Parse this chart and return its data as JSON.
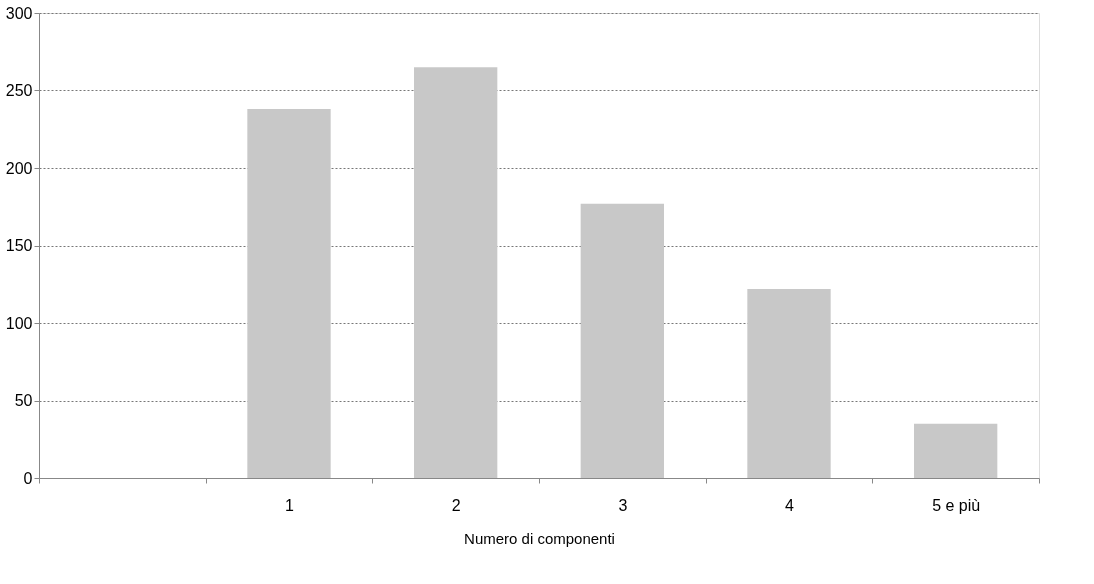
{
  "chart_data": {
    "type": "bar",
    "xlabel": "Numero di componenti",
    "categories": [
      null,
      "1",
      "2",
      "3",
      "4",
      "5 e più"
    ],
    "values": [
      null,
      238,
      265,
      177,
      122,
      35
    ],
    "color": "#c8c8c8",
    "ylim": [
      0,
      300
    ],
    "yticks": [
      0,
      50,
      100,
      150,
      200,
      250,
      300
    ],
    "grid": "y"
  }
}
